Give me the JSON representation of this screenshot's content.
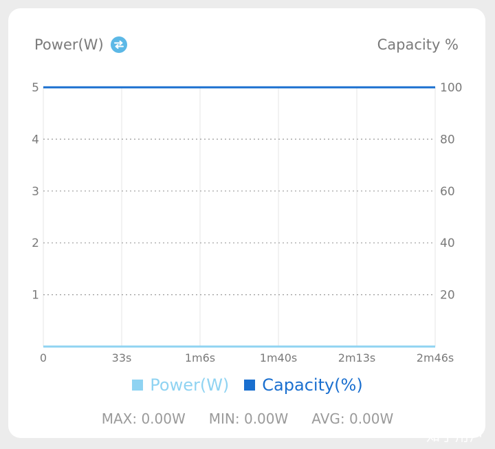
{
  "header": {
    "left_label": "Power(W)",
    "right_label": "Capacity %",
    "swap_icon": "swap-arrows-icon"
  },
  "colors": {
    "power": "#8fd3f2",
    "capacity": "#1a6fcf",
    "axis_text": "#7a7a7a",
    "grid": "#9a9a9a"
  },
  "chart_data": {
    "type": "line",
    "x_ticks": [
      "0",
      "33s",
      "1m6s",
      "1m40s",
      "2m13s",
      "2m46s"
    ],
    "y_left": {
      "label": "Power(W)",
      "range": [
        0,
        5
      ],
      "ticks": [
        1,
        2,
        3,
        4,
        5
      ]
    },
    "y_right": {
      "label": "Capacity %",
      "range": [
        0,
        100
      ],
      "ticks": [
        20,
        40,
        60,
        80,
        100
      ]
    },
    "series": [
      {
        "name": "Power(W)",
        "axis": "left",
        "x": [
          "0",
          "2m46s"
        ],
        "values": [
          0,
          0
        ]
      },
      {
        "name": "Capacity(%)",
        "axis": "right",
        "x": [
          "0",
          "2m46s"
        ],
        "values": [
          100,
          100
        ]
      }
    ],
    "grid": true,
    "legend": "bottom"
  },
  "legend": {
    "power_label": "Power(W)",
    "capacity_label": "Capacity(%)"
  },
  "stats": {
    "max": "MAX: 0.00W",
    "min": "MIN: 0.00W",
    "avg": "AVG: 0.00W"
  },
  "watermark": "知乎用户"
}
